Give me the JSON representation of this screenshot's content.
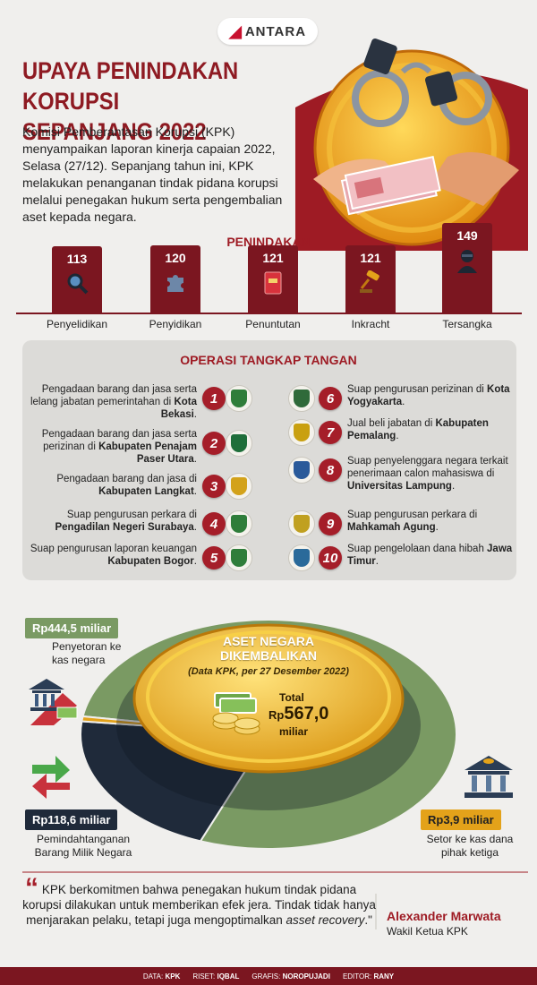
{
  "brand": {
    "logo": "ANTARA"
  },
  "title": {
    "line1": "UPAYA PENINDAKAN KORUPSI",
    "line2": "SEPANJANG 2022"
  },
  "intro": "Komisi Pemberantasan Korupsi (KPK) menyampaikan laporan kinerja capaian 2022, Selasa (27/12). Sepanjang tahun ini, KPK melakukan penanganan tindak pidana korupsi melalui penegakan hukum serta pengembalian aset kepada negara.",
  "penindakan": {
    "heading": "PENINDAKAN",
    "items": [
      {
        "label": "Penyelidikan",
        "value": "113",
        "icon": "magnifier-icon"
      },
      {
        "label": "Penyidikan",
        "value": "120",
        "icon": "puzzle-icon"
      },
      {
        "label": "Penuntutan",
        "value": "121",
        "icon": "law-book-icon"
      },
      {
        "label": "Inkracht",
        "value": "121",
        "icon": "gavel-icon"
      },
      {
        "label": "Tersangka",
        "value": "149",
        "icon": "suspect-icon"
      }
    ]
  },
  "chart_data": {
    "type": "bar",
    "categories": [
      "Penyelidikan",
      "Penyidikan",
      "Penuntutan",
      "Inkracht",
      "Tersangka"
    ],
    "values": [
      113,
      120,
      121,
      121,
      149
    ],
    "title": "PENINDAKAN"
  },
  "ott": {
    "heading": "OPERASI TANGKAP TANGAN",
    "left": [
      {
        "n": "1",
        "pre": "Pengadaan barang dan jasa serta lelang jabatan pemerintahan di ",
        "bold": "Kota Bekasi",
        "post": "."
      },
      {
        "n": "2",
        "pre": "Pengadaan barang dan jasa serta perizinan di ",
        "bold": "Kabupaten Penajam Paser Utara",
        "post": "."
      },
      {
        "n": "3",
        "pre": "Pengadaan barang dan jasa di ",
        "bold": "Kabupaten Langkat",
        "post": "."
      },
      {
        "n": "4",
        "pre": "Suap pengurusan perkara di ",
        "bold": "Pengadilan Negeri Surabaya",
        "post": "."
      },
      {
        "n": "5",
        "pre": "Suap pengurusan laporan keuangan ",
        "bold": "Kabupaten Bogor",
        "post": "."
      }
    ],
    "right": [
      {
        "n": "6",
        "pre": "Suap pengurusan perizinan di ",
        "bold": "Kota Yogyakarta",
        "post": "."
      },
      {
        "n": "7",
        "pre": "Jual beli jabatan di ",
        "bold": "Kabupaten Pemalang",
        "post": "."
      },
      {
        "n": "8",
        "pre": "Suap penyelenggara negara terkait penerimaan calon mahasiswa di ",
        "bold": "Universitas Lampung",
        "post": "."
      },
      {
        "n": "9",
        "pre": "Suap pengurusan perkara di ",
        "bold": "Mahkamah Agung",
        "post": "."
      },
      {
        "n": "10",
        "pre": "Suap pengelolaan dana hibah ",
        "bold": "Jawa Timur",
        "post": "."
      }
    ]
  },
  "aset": {
    "heading1": "ASET NEGARA",
    "heading2": "DIKEMBALIKAN",
    "source": "(Data KPK, per 27 Desember 2022)",
    "total_label": "Total",
    "total_prefix": "Rp",
    "total_value": "567,0",
    "total_unit": "miliar",
    "items": [
      {
        "amount": "Rp444,5 miliar",
        "label": "Penyetoran ke kas negara",
        "value": 444.5,
        "color": "#7a9a63"
      },
      {
        "amount": "Rp118,6 miliar",
        "label": "Pemindahtanganan Barang Milik Negara",
        "value": 118.6,
        "color": "#1f2a3a"
      },
      {
        "amount": "Rp3,9 miliar",
        "label": "Setor ke kas dana pihak ketiga",
        "value": 3.9,
        "color": "#e3a21a"
      }
    ]
  },
  "quote": {
    "text_pre": "KPK berkomitmen bahwa penegakan hukum tindak pidana korupsi dilakukan untuk memberikan efek jera. Tindak tidak hanya menjarakan pelaku, tetapi juga mengoptimalkan ",
    "text_em": "asset recovery",
    "text_post": ".\"",
    "name": "Alexander Marwata",
    "role": "Wakil Ketua KPK"
  },
  "footer": [
    {
      "k": "DATA:",
      "v": "KPK"
    },
    {
      "k": "RISET:",
      "v": "IQBAL"
    },
    {
      "k": "GRAFIS:",
      "v": "NOROPUJADI"
    },
    {
      "k": "EDITOR:",
      "v": "RANY"
    }
  ],
  "colors": {
    "maroon": "#7b1620",
    "red": "#a51e29",
    "green": "#7a9a63",
    "navy": "#1f2a3a",
    "gold": "#e3a21a"
  }
}
